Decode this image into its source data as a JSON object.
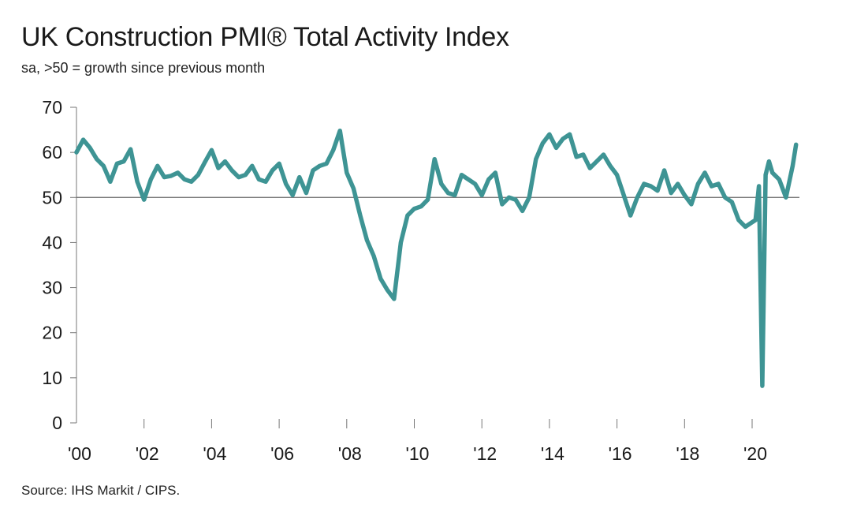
{
  "chart_data": {
    "type": "line",
    "title": "UK Construction PMI® Total Activity Index",
    "subtitle": "sa, >50 = growth since previous month",
    "source": "Source: IHS Markit / CIPS.",
    "ylim": [
      0,
      70
    ],
    "y_ticks": [
      "0",
      "10",
      "20",
      "30",
      "40",
      "50",
      "60",
      "70"
    ],
    "xlim": [
      2000.0,
      2021.4
    ],
    "x_ticks": [
      "'00",
      "'02",
      "'04",
      "'06",
      "'08",
      "'10",
      "'12",
      "'14",
      "'16",
      "'18",
      "'20"
    ],
    "reference_line": 50,
    "line_color": "#3e9494",
    "series": [
      {
        "x": [
          2000.0,
          2000.2,
          2000.4,
          2000.6,
          2000.8,
          2001.0,
          2001.2,
          2001.4,
          2001.6,
          2001.8,
          2002.0,
          2002.2,
          2002.4,
          2002.6,
          2002.8,
          2003.0,
          2003.2,
          2003.4,
          2003.6,
          2003.8,
          2004.0,
          2004.2,
          2004.4,
          2004.6,
          2004.8,
          2005.0,
          2005.2,
          2005.4,
          2005.6,
          2005.8,
          2006.0,
          2006.2,
          2006.4,
          2006.6,
          2006.8,
          2007.0,
          2007.2,
          2007.4,
          2007.6,
          2007.8,
          2008.0,
          2008.2,
          2008.4,
          2008.6,
          2008.8,
          2009.0,
          2009.2,
          2009.4,
          2009.6,
          2009.8,
          2010.0,
          2010.2,
          2010.4,
          2010.6,
          2010.8,
          2011.0,
          2011.2,
          2011.4,
          2011.6,
          2011.8,
          2012.0,
          2012.2,
          2012.4,
          2012.6,
          2012.8,
          2013.0,
          2013.2,
          2013.4,
          2013.6,
          2013.8,
          2014.0,
          2014.2,
          2014.4,
          2014.6,
          2014.8,
          2015.0,
          2015.2,
          2015.4,
          2015.6,
          2015.8,
          2016.0,
          2016.2,
          2016.4,
          2016.6,
          2016.8,
          2017.0,
          2017.2,
          2017.4,
          2017.6,
          2017.8,
          2018.0,
          2018.2,
          2018.4,
          2018.6,
          2018.8,
          2019.0,
          2019.2,
          2019.4,
          2019.6,
          2019.8,
          2020.0,
          2020.1,
          2020.2,
          2020.3,
          2020.4,
          2020.5,
          2020.6,
          2020.8,
          2021.0,
          2021.2,
          2021.3
        ],
        "y": [
          60.0,
          62.8,
          61.0,
          58.5,
          57.0,
          53.5,
          57.5,
          58.0,
          60.7,
          53.5,
          49.5,
          54.0,
          57.0,
          54.5,
          54.8,
          55.5,
          54.0,
          53.5,
          55.0,
          57.8,
          60.5,
          56.5,
          58.0,
          56.0,
          54.5,
          55.0,
          57.0,
          54.0,
          53.5,
          56.0,
          57.5,
          53.0,
          50.5,
          54.5,
          51.0,
          56.0,
          57.0,
          57.5,
          60.5,
          64.8,
          55.5,
          52.0,
          46.0,
          40.5,
          37.0,
          32.0,
          29.5,
          27.5,
          40.0,
          46.0,
          47.5,
          48.0,
          49.5,
          58.5,
          53.0,
          51.0,
          50.5,
          55.0,
          54.0,
          53.0,
          50.5,
          54.0,
          55.5,
          48.5,
          50.0,
          49.5,
          47.0,
          50.0,
          58.5,
          62.0,
          64.0,
          61.0,
          63.0,
          64.0,
          59.0,
          59.5,
          56.5,
          58.0,
          59.5,
          57.0,
          55.0,
          50.5,
          46.0,
          50.0,
          53.0,
          52.5,
          51.5,
          56.0,
          51.0,
          53.0,
          50.5,
          48.5,
          53.0,
          55.5,
          52.5,
          53.0,
          50.0,
          49.0,
          45.0,
          43.5,
          44.5,
          45.0,
          52.5,
          8.2,
          55.0,
          58.0,
          55.5,
          54.0,
          50.0,
          57.0,
          61.7
        ]
      }
    ]
  }
}
